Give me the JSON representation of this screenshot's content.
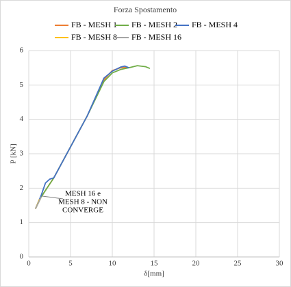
{
  "chart_data": {
    "type": "line",
    "title": "Forza Spostamento",
    "xlabel": "δ[mm]",
    "ylabel": "P [kN]",
    "xlim": [
      0,
      30
    ],
    "xticks": [
      0,
      5,
      10,
      15,
      20,
      25,
      30
    ],
    "ylim": [
      0,
      6
    ],
    "yticks": [
      0,
      1,
      2,
      3,
      4,
      5,
      6
    ],
    "grid": true,
    "legend": "top",
    "annotation": {
      "lines": [
        "MESH 16 e",
        "MESH 8 - NON",
        "CONVERGE"
      ]
    },
    "series": [
      {
        "name": "FB - MESH 1",
        "color": "#ED7D31",
        "x": [
          0.8,
          1.5,
          3,
          5,
          7,
          9,
          10,
          11,
          11.8
        ],
        "values": [
          1.4,
          1.75,
          2.3,
          3.2,
          4.1,
          5.15,
          5.42,
          5.5,
          5.52
        ]
      },
      {
        "name": "FB - MESH 2",
        "color": "#70AD47",
        "x": [
          0.8,
          1.5,
          3,
          5,
          7,
          9,
          10,
          11,
          12,
          13,
          14,
          14.5
        ],
        "values": [
          1.4,
          1.75,
          2.3,
          3.2,
          4.1,
          5.1,
          5.35,
          5.45,
          5.5,
          5.56,
          5.53,
          5.48
        ]
      },
      {
        "name": "FB - MESH 4",
        "color": "#4472C4",
        "x": [
          0.8,
          1.5,
          2,
          2.5,
          3,
          5,
          7,
          9,
          10,
          11,
          11.5,
          12
        ],
        "values": [
          1.4,
          1.8,
          2.15,
          2.26,
          2.3,
          3.2,
          4.1,
          5.2,
          5.4,
          5.52,
          5.55,
          5.5
        ]
      },
      {
        "name": "FB - MESH 8",
        "color": "#FFC000",
        "x": [
          0.8,
          1.3
        ],
        "values": [
          1.4,
          1.68
        ]
      },
      {
        "name": "FB - MESH 16",
        "color": "#A5A5A5",
        "x": [
          0.8,
          1.5
        ],
        "values": [
          1.4,
          1.75
        ]
      }
    ]
  }
}
